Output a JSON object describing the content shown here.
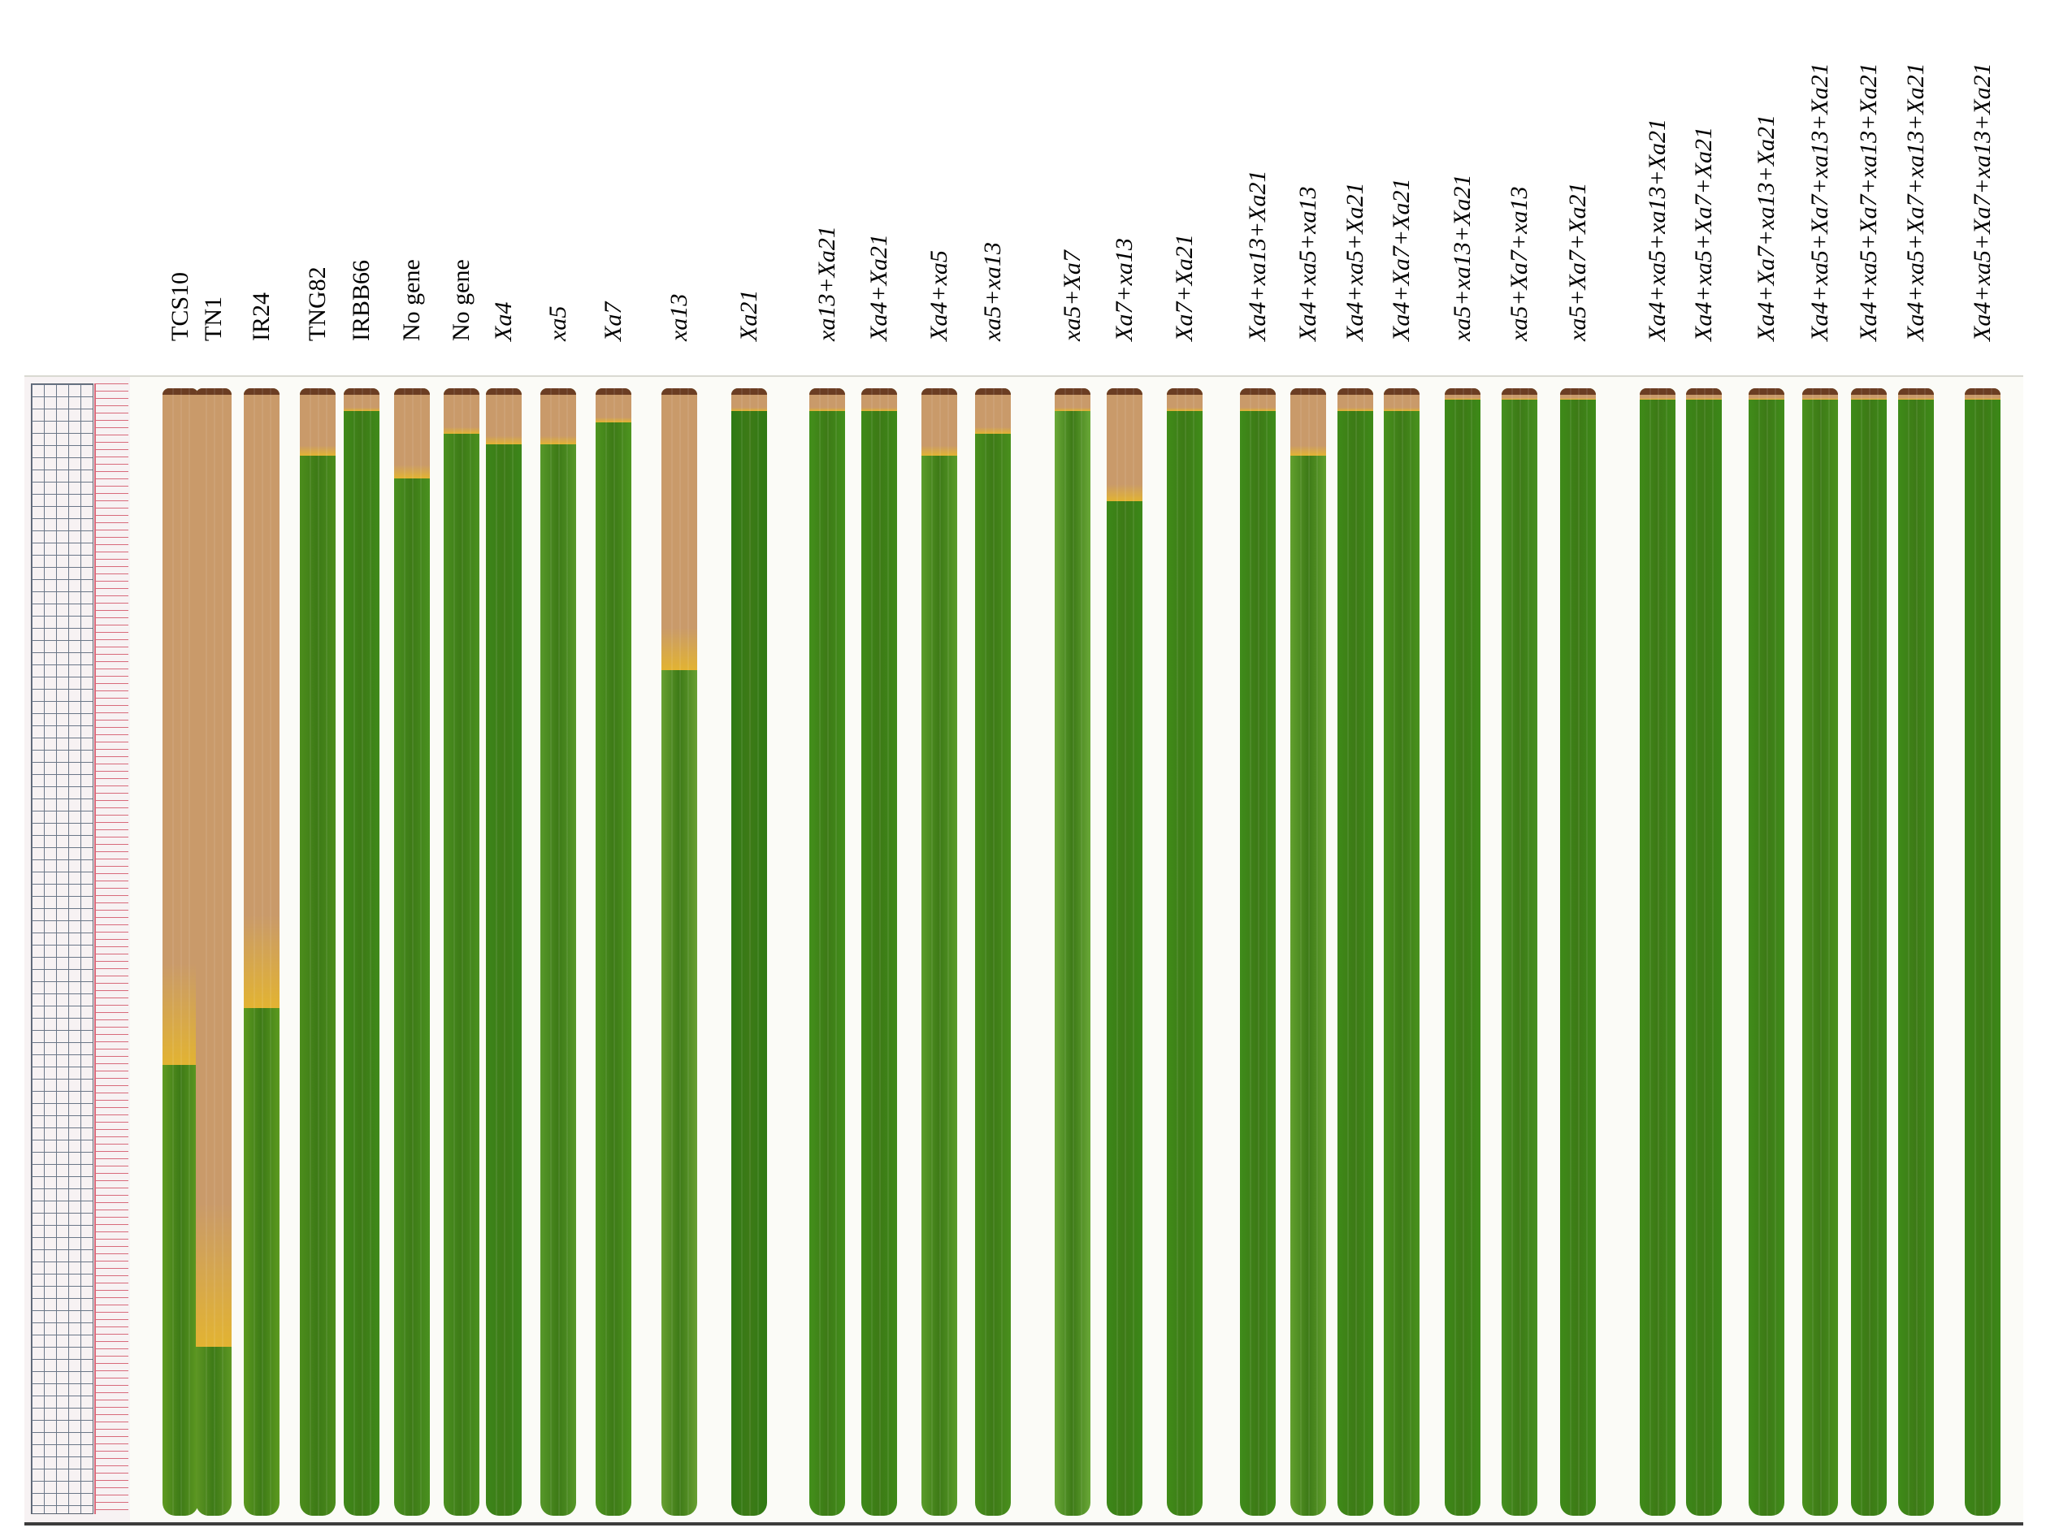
{
  "figure": {
    "labels": [
      {
        "text": "TCS10",
        "italic": false
      },
      {
        "text": "TN1",
        "italic": false
      },
      {
        "text": "IR24",
        "italic": false
      },
      {
        "text": "TNG82",
        "italic": false
      },
      {
        "text": "IRBB66",
        "italic": false
      },
      {
        "text": "No gene",
        "italic": false
      },
      {
        "text": "No gene",
        "italic": false
      },
      {
        "text": "Xa4",
        "italic": true
      },
      {
        "text": "xa5",
        "italic": true
      },
      {
        "text": "Xa7",
        "italic": true
      },
      {
        "text": "xa13",
        "italic": true
      },
      {
        "text": "Xa21",
        "italic": true
      },
      {
        "text": "xa13+Xa21",
        "italic": true
      },
      {
        "text": "Xa4+Xa21",
        "italic": true
      },
      {
        "text": "Xa4+xa5",
        "italic": true
      },
      {
        "text": "xa5+xa13",
        "italic": true
      },
      {
        "text": "xa5+Xa7",
        "italic": true
      },
      {
        "text": "Xa7+xa13",
        "italic": true
      },
      {
        "text": "Xa7+Xa21",
        "italic": true
      },
      {
        "text": "Xa4+xa13+Xa21",
        "italic": true
      },
      {
        "text": "Xa4+xa5+xa13",
        "italic": true
      },
      {
        "text": "Xa4+xa5+Xa21",
        "italic": true
      },
      {
        "text": "Xa4+Xa7+Xa21",
        "italic": true
      },
      {
        "text": "xa5+xa13+Xa21",
        "italic": true
      },
      {
        "text": "xa5+Xa7+xa13",
        "italic": true
      },
      {
        "text": "xa5+Xa7+Xa21",
        "italic": true
      },
      {
        "text": "Xa4+xa5+xa13+Xa21",
        "italic": true
      },
      {
        "text": "Xa4+xa5+Xa7+Xa21",
        "italic": true
      },
      {
        "text": "Xa4+Xa7+xa13+Xa21",
        "italic": true
      },
      {
        "text": "Xa4+xa5+Xa7+xa13+Xa21",
        "italic": true
      },
      {
        "text": "Xa4+xa5+Xa7+xa13+Xa21",
        "italic": true
      },
      {
        "text": "Xa4+xa5+Xa7+xa13+Xa21",
        "italic": true
      },
      {
        "text": "Xa4+xa5+Xa7+xa13+Xa21",
        "italic": true
      }
    ],
    "leaves": [
      {
        "lesion": 0.6,
        "green": "#5f9a22"
      },
      {
        "lesion": 0.85,
        "green": "#5e9724"
      },
      {
        "lesion": 0.55,
        "green": "#5c9a20"
      },
      {
        "lesion": 0.06,
        "green": "#4c8d1c"
      },
      {
        "lesion": 0.02,
        "green": "#3f8a1a"
      },
      {
        "lesion": 0.08,
        "green": "#4a9120"
      },
      {
        "lesion": 0.04,
        "green": "#4b9120"
      },
      {
        "lesion": 0.05,
        "green": "#3c861a"
      },
      {
        "lesion": 0.05,
        "green": "#57982a"
      },
      {
        "lesion": 0.03,
        "green": "#4e9520"
      },
      {
        "lesion": 0.25,
        "green": "#68a032"
      },
      {
        "lesion": 0.02,
        "green": "#2f7a14"
      },
      {
        "lesion": 0.02,
        "green": "#43901b"
      },
      {
        "lesion": 0.02,
        "green": "#3e8a18"
      },
      {
        "lesion": 0.06,
        "green": "#5a9c2a"
      },
      {
        "lesion": 0.04,
        "green": "#4a901e"
      },
      {
        "lesion": 0.02,
        "green": "#6aa838"
      },
      {
        "lesion": 0.1,
        "green": "#3c8818"
      },
      {
        "lesion": 0.02,
        "green": "#408c19"
      },
      {
        "lesion": 0.02,
        "green": "#3f8c1a"
      },
      {
        "lesion": 0.06,
        "green": "#62a02e"
      },
      {
        "lesion": 0.02,
        "green": "#3e8a18"
      },
      {
        "lesion": 0.02,
        "green": "#49921e"
      },
      {
        "lesion": 0.01,
        "green": "#3d8a18"
      },
      {
        "lesion": 0.01,
        "green": "#459020"
      },
      {
        "lesion": 0.01,
        "green": "#3e8b19"
      },
      {
        "lesion": 0.01,
        "green": "#3f8b19"
      },
      {
        "lesion": 0.01,
        "green": "#3c8818"
      },
      {
        "lesion": 0.01,
        "green": "#408c1a"
      },
      {
        "lesion": 0.01,
        "green": "#4a921e"
      },
      {
        "lesion": 0.01,
        "green": "#3d8a18"
      },
      {
        "lesion": 0.01,
        "green": "#3f8b19"
      },
      {
        "lesion": 0.01,
        "green": "#3c8818"
      }
    ],
    "lesion_color": "#c99a6a",
    "lesion_edge_color": "#e2b332"
  }
}
